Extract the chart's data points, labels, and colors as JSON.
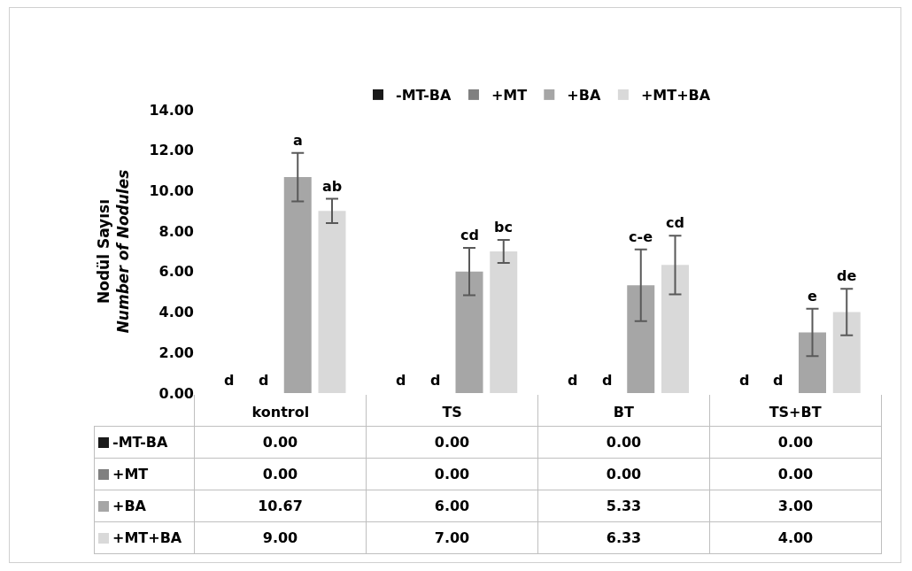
{
  "chart_data": {
    "type": "bar",
    "ylabel": "Nodül Sayısı\nNumber of Nodules",
    "categories": [
      "kontrol",
      "TS",
      "BT",
      "TS+BT"
    ],
    "series": [
      {
        "name": "-MT-BA",
        "color": "#1a1a1a",
        "values": [
          0,
          0,
          0,
          0
        ],
        "value_labels": [
          "0.00",
          "0.00",
          "0.00",
          "0.00"
        ]
      },
      {
        "name": "+MT",
        "color": "#808080",
        "values": [
          0,
          0,
          0,
          0
        ],
        "value_labels": [
          "0.00",
          "0.00",
          "0.00",
          "0.00"
        ]
      },
      {
        "name": "+BA",
        "color": "#a6a6a6",
        "values": [
          10.67,
          6.0,
          5.33,
          3.0
        ],
        "errors": [
          1.2,
          1.17,
          1.77,
          1.17
        ],
        "value_labels": [
          "10.67",
          "6.00",
          "5.33",
          "3.00"
        ]
      },
      {
        "name": "+MT+BA",
        "color": "#d9d9d9",
        "values": [
          9.0,
          7.0,
          6.33,
          4.0
        ],
        "errors": [
          0.6,
          0.57,
          1.45,
          1.15
        ],
        "value_labels": [
          "9.00",
          "7.00",
          "6.33",
          "4.00"
        ]
      }
    ],
    "annotations": [
      "d",
      "d",
      "a",
      "ab",
      "d",
      "d",
      "cd",
      "bc",
      "d",
      "d",
      "c-e",
      "cd",
      "d",
      "d",
      "e",
      "de"
    ],
    "data_labels": true,
    "ylim": [
      0,
      14
    ],
    "yticks": [
      {
        "value": 0,
        "label": "0.00"
      },
      {
        "value": 2,
        "label": "2.00"
      },
      {
        "value": 4,
        "label": "4.00"
      },
      {
        "value": 6,
        "label": "6.00"
      },
      {
        "value": 8,
        "label": "8.00"
      },
      {
        "value": 10,
        "label": "10.00"
      },
      {
        "value": 12,
        "label": "12.00"
      },
      {
        "value": 14,
        "label": "14.00"
      }
    ],
    "grid": false,
    "legend": "top"
  }
}
